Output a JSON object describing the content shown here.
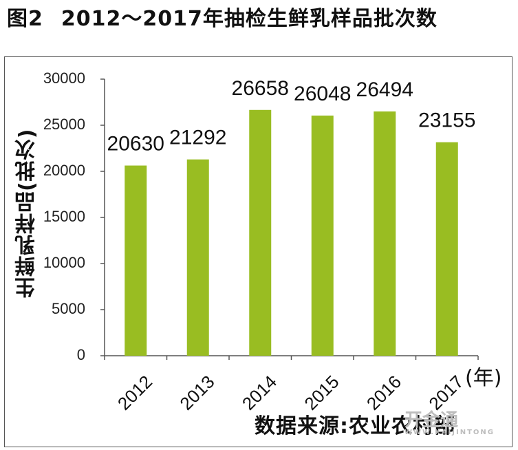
{
  "figure": {
    "number": "图2",
    "title": "2012～2017年抽检生鲜乳样品批次数"
  },
  "source_note": "数据来源:农业农村部",
  "watermark": {
    "main": "开金通",
    "sub": "WWW.KAIJINTONG"
  },
  "colors": {
    "bar": "#99bd22",
    "axis": "#555555"
  },
  "chart_data": {
    "type": "bar",
    "categories": [
      "2012",
      "2013",
      "2014",
      "2015",
      "2016",
      "2017"
    ],
    "values": [
      20630,
      21292,
      26658,
      26048,
      26494,
      23155
    ],
    "data_labels": [
      "20630",
      "21292",
      "26658",
      "26048",
      "26494",
      "23155"
    ],
    "ylabel": "生鲜乳样品(批次)",
    "xunit": "(年)",
    "ylim": [
      0,
      30000
    ],
    "yticks": [
      "0",
      "5000",
      "10000",
      "15000",
      "20000",
      "25000",
      "30000"
    ],
    "grid": false,
    "legend": "none"
  }
}
